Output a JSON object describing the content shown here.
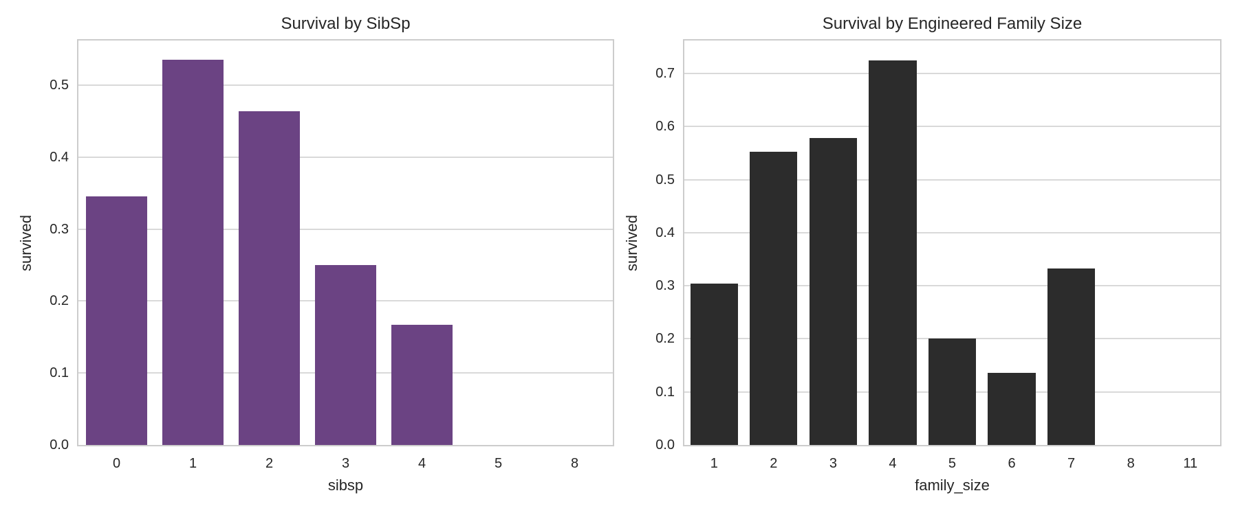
{
  "figure": {
    "background": "#ffffff",
    "text_color": "#262626",
    "grid_color": "#d9d9d9",
    "spine_color": "#cccccc"
  },
  "chart_data": [
    {
      "type": "bar",
      "title": "Survival by SibSp",
      "xlabel": "sibsp",
      "ylabel": "survived",
      "categories": [
        "0",
        "1",
        "2",
        "3",
        "4",
        "5",
        "8"
      ],
      "values": [
        0.345,
        0.535,
        0.464,
        0.25,
        0.167,
        0.0,
        0.0
      ],
      "bar_color": "#6b4383",
      "ylim": [
        0,
        0.562
      ],
      "yticks": [
        0.0,
        0.1,
        0.2,
        0.3,
        0.4,
        0.5
      ],
      "ytick_labels": [
        "0.0",
        "0.1",
        "0.2",
        "0.3",
        "0.4",
        "0.5"
      ],
      "grid": true,
      "legend": "none"
    },
    {
      "type": "bar",
      "title": "Survival by Engineered Family Size",
      "xlabel": "family_size",
      "ylabel": "survived",
      "categories": [
        "1",
        "2",
        "3",
        "4",
        "5",
        "6",
        "7",
        "8",
        "11"
      ],
      "values": [
        0.304,
        0.553,
        0.578,
        0.724,
        0.2,
        0.136,
        0.333,
        0.0,
        0.0
      ],
      "bar_color": "#2c2c2c",
      "ylim": [
        0,
        0.762
      ],
      "yticks": [
        0.0,
        0.1,
        0.2,
        0.3,
        0.4,
        0.5,
        0.6,
        0.7
      ],
      "ytick_labels": [
        "0.0",
        "0.1",
        "0.2",
        "0.3",
        "0.4",
        "0.5",
        "0.6",
        "0.7"
      ],
      "grid": true,
      "legend": "none"
    }
  ]
}
